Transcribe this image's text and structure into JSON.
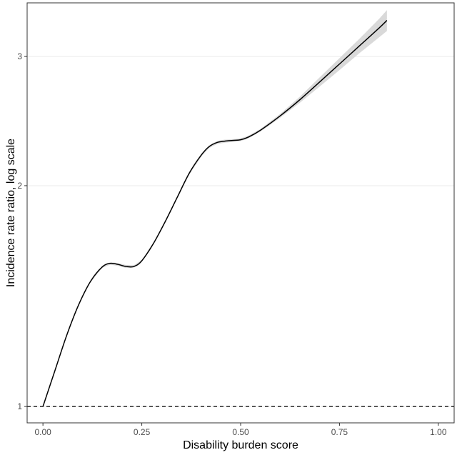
{
  "chart_data": {
    "type": "line",
    "title": "",
    "xlabel": "Disability burden score",
    "ylabel": "Incidence rate ratio, log scale",
    "xlim": [
      -0.04,
      1.04
    ],
    "ylim": [
      0.95,
      3.55
    ],
    "y_scale": "log",
    "grid": "horizontal major only",
    "x_ticks": [
      0,
      0.25,
      0.5,
      0.75,
      1
    ],
    "x_tick_labels": [
      "0.00",
      "0.25",
      "0.50",
      "0.75",
      "1.00"
    ],
    "y_ticks": [
      1,
      2,
      3
    ],
    "y_tick_labels": [
      "1",
      "2",
      "3"
    ],
    "reference_line": {
      "y": 1,
      "style": "dashed"
    },
    "series": [
      {
        "x": [
          0,
          0.03,
          0.06,
          0.09,
          0.12,
          0.15,
          0.17,
          0.19,
          0.21,
          0.23,
          0.25,
          0.28,
          0.31,
          0.34,
          0.37,
          0.4,
          0.42,
          0.44,
          0.46,
          0.48,
          0.5,
          0.52,
          0.55,
          0.6,
          0.65,
          0.7,
          0.75,
          0.8,
          0.85,
          0.87
        ],
        "y": [
          1.0,
          1.118,
          1.25,
          1.375,
          1.48,
          1.55,
          1.567,
          1.562,
          1.552,
          1.552,
          1.58,
          1.67,
          1.79,
          1.93,
          2.08,
          2.2,
          2.26,
          2.29,
          2.3,
          2.305,
          2.31,
          2.33,
          2.38,
          2.49,
          2.62,
          2.77,
          2.93,
          3.1,
          3.28,
          3.36
        ],
        "ci_lower": [
          1.0,
          1.117,
          1.248,
          1.372,
          1.476,
          1.545,
          1.561,
          1.555,
          1.545,
          1.546,
          1.575,
          1.664,
          1.782,
          1.922,
          2.07,
          2.19,
          2.25,
          2.279,
          2.289,
          2.295,
          2.3,
          2.32,
          2.37,
          2.475,
          2.595,
          2.73,
          2.875,
          3.03,
          3.185,
          3.25
        ],
        "ci_upper": [
          1.0,
          1.119,
          1.252,
          1.378,
          1.484,
          1.555,
          1.573,
          1.569,
          1.559,
          1.558,
          1.585,
          1.676,
          1.798,
          1.938,
          2.09,
          2.21,
          2.27,
          2.301,
          2.311,
          2.315,
          2.32,
          2.34,
          2.39,
          2.505,
          2.645,
          2.81,
          2.985,
          3.17,
          3.375,
          3.47
        ]
      }
    ]
  },
  "colors": {
    "line": "#000000",
    "ribbon": "#d9d9d9",
    "grid": "#ebebeb",
    "panel_border": "#333333",
    "tick_text": "#4d4d4d"
  }
}
